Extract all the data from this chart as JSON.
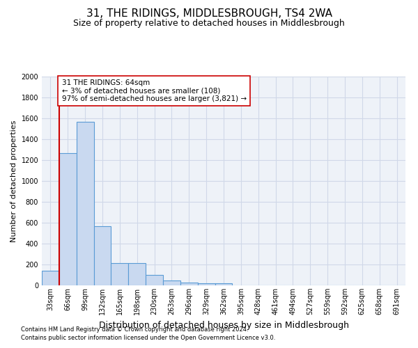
{
  "title": "31, THE RIDINGS, MIDDLESBROUGH, TS4 2WA",
  "subtitle": "Size of property relative to detached houses in Middlesbrough",
  "xlabel": "Distribution of detached houses by size in Middlesbrough",
  "ylabel": "Number of detached properties",
  "footnote1": "Contains HM Land Registry data © Crown copyright and database right 2024.",
  "footnote2": "Contains public sector information licensed under the Open Government Licence v3.0.",
  "bin_labels": [
    "33sqm",
    "66sqm",
    "99sqm",
    "132sqm",
    "165sqm",
    "198sqm",
    "230sqm",
    "263sqm",
    "296sqm",
    "329sqm",
    "362sqm",
    "395sqm",
    "428sqm",
    "461sqm",
    "494sqm",
    "527sqm",
    "559sqm",
    "592sqm",
    "625sqm",
    "658sqm",
    "691sqm"
  ],
  "bar_values": [
    140,
    1270,
    1570,
    565,
    215,
    215,
    100,
    50,
    25,
    20,
    20,
    0,
    0,
    0,
    0,
    0,
    0,
    0,
    0,
    0,
    0
  ],
  "bar_color": "#c9d9f0",
  "bar_edge_color": "#5a9bd5",
  "vline_x": 1,
  "vline_color": "#cc0000",
  "annotation_text": "31 THE RIDINGS: 64sqm\n← 3% of detached houses are smaller (108)\n97% of semi-detached houses are larger (3,821) →",
  "annotation_box_color": "#ffffff",
  "annotation_box_edge": "#cc0000",
  "ylim": [
    0,
    2000
  ],
  "yticks": [
    0,
    200,
    400,
    600,
    800,
    1000,
    1200,
    1400,
    1600,
    1800,
    2000
  ],
  "grid_color": "#d0d8e8",
  "background_color": "#eef2f8",
  "title_fontsize": 11,
  "subtitle_fontsize": 9,
  "ylabel_fontsize": 8,
  "xlabel_fontsize": 9,
  "tick_fontsize": 7,
  "annot_fontsize": 7.5,
  "footnote_fontsize": 6
}
